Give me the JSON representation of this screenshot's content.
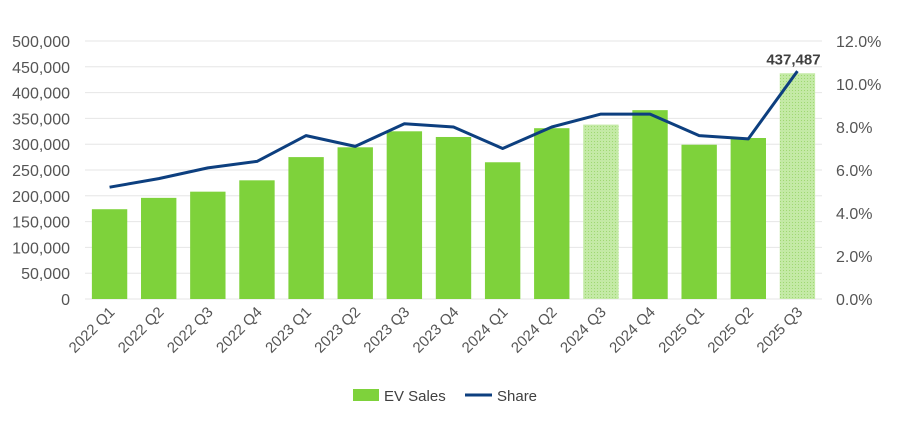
{
  "chart_data": {
    "type": "bar+line",
    "categories": [
      "2022 Q1",
      "2022 Q2",
      "2022 Q3",
      "2022 Q4",
      "2023 Q1",
      "2023 Q2",
      "2023 Q3",
      "2023 Q4",
      "2024 Q1",
      "2024 Q2",
      "2024 Q3",
      "2024 Q4",
      "2025 Q1",
      "2025 Q2",
      "2025 Q3"
    ],
    "series": [
      {
        "name": "EV Sales",
        "type": "bar",
        "axis": "left",
        "color": "#7ed23b",
        "highlight_color": "#b9e59a",
        "values": [
          174000,
          196000,
          208000,
          230000,
          275000,
          294000,
          325000,
          314000,
          265000,
          331000,
          338000,
          366000,
          299000,
          312000,
          437487
        ],
        "hatched_categories": [
          "2024 Q3",
          "2025 Q3"
        ]
      },
      {
        "name": "Share",
        "type": "line",
        "axis": "right",
        "color": "#0d3f7f",
        "values": [
          5.2,
          5.6,
          6.1,
          6.4,
          7.6,
          7.1,
          8.15,
          8.0,
          7.0,
          8.0,
          8.6,
          8.6,
          7.6,
          7.45,
          10.6
        ]
      }
    ],
    "data_labels": [
      {
        "category": "2025 Q3",
        "text": "437,487"
      }
    ],
    "y_left": {
      "range": [
        0,
        500000
      ],
      "ticks": [
        "0",
        "50,000",
        "100,000",
        "150,000",
        "200,000",
        "250,000",
        "300,000",
        "350,000",
        "400,000",
        "450,000",
        "500,000"
      ]
    },
    "y_right": {
      "range": [
        0,
        12
      ],
      "ticks": [
        "0.0%",
        "2.0%",
        "4.0%",
        "6.0%",
        "8.0%",
        "10.0%",
        "12.0%"
      ]
    },
    "grid": true,
    "legend_position": "bottom",
    "legend": [
      "EV Sales",
      "Share"
    ]
  }
}
